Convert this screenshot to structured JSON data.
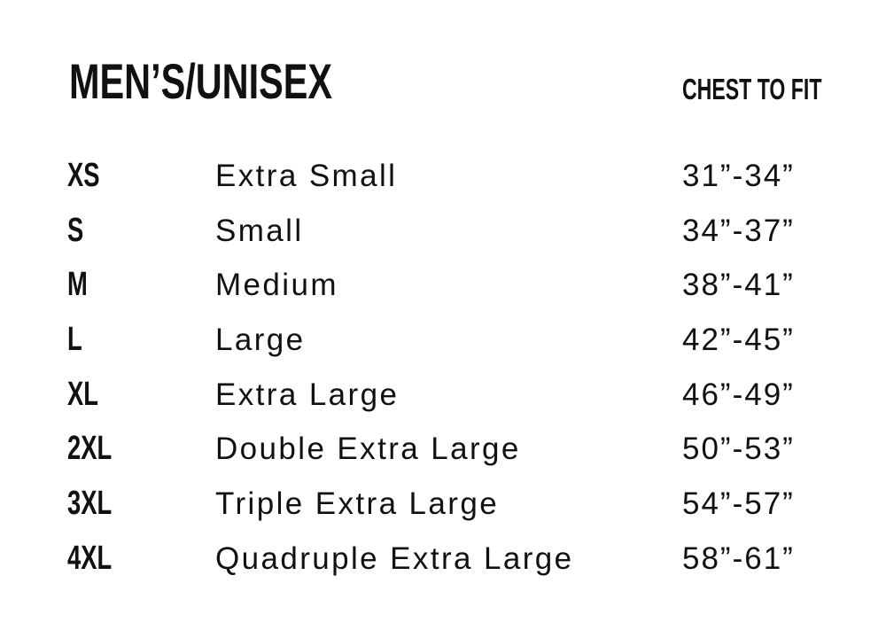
{
  "title": "MEN’S/UNISEX",
  "column_header": "CHEST TO FIT",
  "rows": [
    {
      "size": "XS",
      "name": "Extra Small",
      "chest": "31”-34”"
    },
    {
      "size": "S",
      "name": "Small",
      "chest": "34”-37”"
    },
    {
      "size": "M",
      "name": "Medium",
      "chest": "38”-41”"
    },
    {
      "size": "L",
      "name": "Large",
      "chest": "42”-45”"
    },
    {
      "size": "XL",
      "name": "Extra Large",
      "chest": "46”-49”"
    },
    {
      "size": "2XL",
      "name": "Double Extra Large",
      "chest": "50”-53”"
    },
    {
      "size": "3XL",
      "name": "Triple Extra Large",
      "chest": "54”-57”"
    },
    {
      "size": "4XL",
      "name": "Quadruple Extra Large",
      "chest": "58”-61”"
    }
  ]
}
